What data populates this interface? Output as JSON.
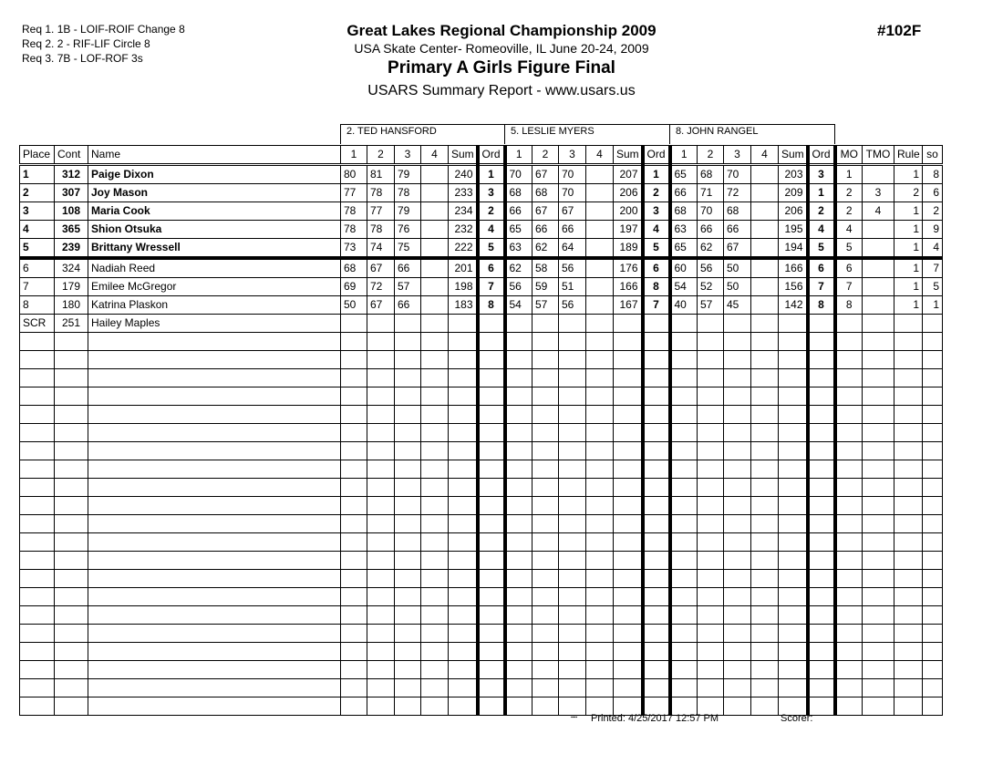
{
  "requirements": [
    "Req  1.  1B - LOIF-ROIF Change 8",
    "Req  2.  2 - RIF-LIF Circle 8",
    "Req  3.  7B - LOF-ROF 3s"
  ],
  "title": "Great Lakes Regional Championship 2009",
  "venue": "USA Skate Center- Romeoville, IL  June 20-24, 2009",
  "event": "Primary  A Girls Figure Final",
  "report": "USARS Summary Report - www.usars.us",
  "event_code": "#102F",
  "judges": [
    "2.  TED  HANSFORD",
    "5.  LESLIE MYERS",
    "8.  JOHN RANGEL"
  ],
  "headers": {
    "place": "Place",
    "cont": "Cont",
    "name": "Name",
    "judge_cols": [
      "1",
      "2",
      "3",
      "4",
      "Sum",
      "Ord"
    ],
    "tail": [
      "MO",
      "TMO",
      "Rule",
      "so"
    ]
  },
  "rows": [
    {
      "place": "1",
      "cont": "312",
      "name": "Paige Dixon",
      "j": [
        [
          "80",
          "81",
          "79",
          "",
          "240",
          "1"
        ],
        [
          "70",
          "67",
          "70",
          "",
          "207",
          "1"
        ],
        [
          "65",
          "68",
          "70",
          "",
          "203",
          "3"
        ]
      ],
      "mo": "1",
      "tmo": "",
      "rule": "1",
      "so": "8"
    },
    {
      "place": "2",
      "cont": "307",
      "name": "Joy Mason",
      "j": [
        [
          "77",
          "78",
          "78",
          "",
          "233",
          "3"
        ],
        [
          "68",
          "68",
          "70",
          "",
          "206",
          "2"
        ],
        [
          "66",
          "71",
          "72",
          "",
          "209",
          "1"
        ]
      ],
      "mo": "2",
      "tmo": "3",
      "rule": "2",
      "so": "6"
    },
    {
      "place": "3",
      "cont": "108",
      "name": "Maria Cook",
      "j": [
        [
          "78",
          "77",
          "79",
          "",
          "234",
          "2"
        ],
        [
          "66",
          "67",
          "67",
          "",
          "200",
          "3"
        ],
        [
          "68",
          "70",
          "68",
          "",
          "206",
          "2"
        ]
      ],
      "mo": "2",
      "tmo": "4",
      "rule": "1",
      "so": "2"
    },
    {
      "place": "4",
      "cont": "365",
      "name": "Shion Otsuka",
      "j": [
        [
          "78",
          "78",
          "76",
          "",
          "232",
          "4"
        ],
        [
          "65",
          "66",
          "66",
          "",
          "197",
          "4"
        ],
        [
          "63",
          "66",
          "66",
          "",
          "195",
          "4"
        ]
      ],
      "mo": "4",
      "tmo": "",
      "rule": "1",
      "so": "9"
    },
    {
      "place": "5",
      "cont": "239",
      "name": "Brittany Wressell",
      "j": [
        [
          "73",
          "74",
          "75",
          "",
          "222",
          "5"
        ],
        [
          "63",
          "62",
          "64",
          "",
          "189",
          "5"
        ],
        [
          "65",
          "62",
          "67",
          "",
          "194",
          "5"
        ]
      ],
      "mo": "5",
      "tmo": "",
      "rule": "1",
      "so": "4"
    },
    {
      "place": "6",
      "cont": "324",
      "name": "Nadiah Reed",
      "j": [
        [
          "68",
          "67",
          "66",
          "",
          "201",
          "6"
        ],
        [
          "62",
          "58",
          "56",
          "",
          "176",
          "6"
        ],
        [
          "60",
          "56",
          "50",
          "",
          "166",
          "6"
        ]
      ],
      "mo": "6",
      "tmo": "",
      "rule": "1",
      "so": "7"
    },
    {
      "place": "7",
      "cont": "179",
      "name": "Emilee McGregor",
      "j": [
        [
          "69",
          "72",
          "57",
          "",
          "198",
          "7"
        ],
        [
          "56",
          "59",
          "51",
          "",
          "166",
          "8"
        ],
        [
          "54",
          "52",
          "50",
          "",
          "156",
          "7"
        ]
      ],
      "mo": "7",
      "tmo": "",
      "rule": "1",
      "so": "5"
    },
    {
      "place": "8",
      "cont": "180",
      "name": "Katrina Plaskon",
      "j": [
        [
          "50",
          "67",
          "66",
          "",
          "183",
          "8"
        ],
        [
          "54",
          "57",
          "56",
          "",
          "167",
          "7"
        ],
        [
          "40",
          "57",
          "45",
          "",
          "142",
          "8"
        ]
      ],
      "mo": "8",
      "tmo": "",
      "rule": "1",
      "so": "1"
    },
    {
      "place": "SCR",
      "cont": "251",
      "name": "Hailey Maples",
      "j": [
        [
          "",
          "",
          "",
          "",
          "",
          ""
        ],
        [
          "",
          "",
          "",
          "",
          "",
          ""
        ],
        [
          "",
          "",
          "",
          "",
          "",
          ""
        ]
      ],
      "mo": "",
      "tmo": "",
      "rule": "",
      "so": ""
    }
  ],
  "footer": {
    "printed": "Printed:  4/25/2017  12:57 PM",
    "scorer": "Scorer:"
  }
}
